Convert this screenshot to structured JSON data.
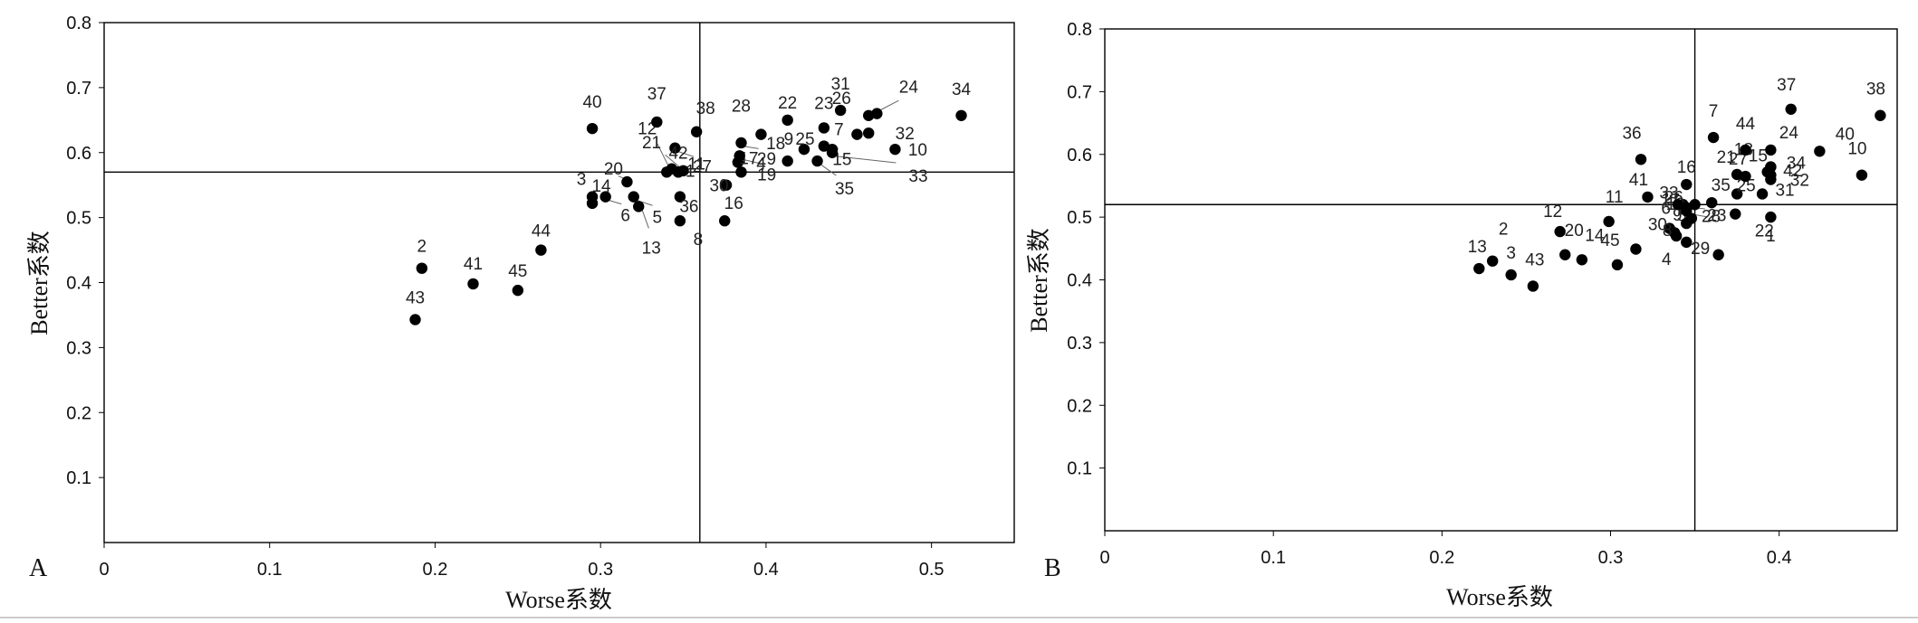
{
  "chart_data": [
    {
      "type": "scatter",
      "panel_label": "A",
      "xlabel": "Worse系数",
      "ylabel": "Better系数",
      "xlim": [
        0,
        0.55
      ],
      "ylim": [
        0,
        0.8
      ],
      "xticks": [
        "0",
        "0.1",
        "0.2",
        "0.3",
        "0.4",
        "0.5"
      ],
      "yticks": [
        "0.1",
        "0.2",
        "0.3",
        "0.4",
        "0.5",
        "0.6",
        "0.7",
        "0.8"
      ],
      "reference_lines": {
        "x": 0.36,
        "y": 0.57
      },
      "grid": false,
      "points": [
        {
          "label": "1",
          "x": 0.34,
          "y": 0.57
        },
        {
          "label": "2",
          "x": 0.192,
          "y": 0.422
        },
        {
          "label": "3",
          "x": 0.295,
          "y": 0.532
        },
        {
          "label": "4",
          "x": 0.385,
          "y": 0.57
        },
        {
          "label": "5",
          "x": 0.32,
          "y": 0.532
        },
        {
          "label": "6",
          "x": 0.303,
          "y": 0.532
        },
        {
          "label": "7",
          "x": 0.455,
          "y": 0.628
        },
        {
          "label": "8",
          "x": 0.348,
          "y": 0.495
        },
        {
          "label": "9",
          "x": 0.423,
          "y": 0.605
        },
        {
          "label": "10",
          "x": 0.478,
          "y": 0.605
        },
        {
          "label": "11",
          "x": 0.347,
          "y": 0.57
        },
        {
          "label": "12",
          "x": 0.343,
          "y": 0.575
        },
        {
          "label": "13",
          "x": 0.323,
          "y": 0.517
        },
        {
          "label": "14",
          "x": 0.295,
          "y": 0.522
        },
        {
          "label": "15",
          "x": 0.435,
          "y": 0.61
        },
        {
          "label": "16",
          "x": 0.375,
          "y": 0.495
        },
        {
          "label": "17",
          "x": 0.383,
          "y": 0.585
        },
        {
          "label": "18",
          "x": 0.413,
          "y": 0.587
        },
        {
          "label": "19",
          "x": 0.384,
          "y": 0.595
        },
        {
          "label": "20",
          "x": 0.316,
          "y": 0.555
        },
        {
          "label": "21",
          "x": 0.35,
          "y": 0.572
        },
        {
          "label": "22",
          "x": 0.413,
          "y": 0.65
        },
        {
          "label": "23",
          "x": 0.435,
          "y": 0.638
        },
        {
          "label": "24",
          "x": 0.467,
          "y": 0.66
        },
        {
          "label": "25",
          "x": 0.44,
          "y": 0.605
        },
        {
          "label": "26",
          "x": 0.462,
          "y": 0.657
        },
        {
          "label": "27",
          "x": 0.345,
          "y": 0.607
        },
        {
          "label": "28",
          "x": 0.397,
          "y": 0.628
        },
        {
          "label": "29",
          "x": 0.385,
          "y": 0.615
        },
        {
          "label": "30",
          "x": 0.376,
          "y": 0.55
        },
        {
          "label": "31",
          "x": 0.445,
          "y": 0.665
        },
        {
          "label": "32",
          "x": 0.462,
          "y": 0.63
        },
        {
          "label": "33",
          "x": 0.44,
          "y": 0.6
        },
        {
          "label": "34",
          "x": 0.518,
          "y": 0.657
        },
        {
          "label": "35",
          "x": 0.431,
          "y": 0.587
        },
        {
          "label": "36",
          "x": 0.348,
          "y": 0.532
        },
        {
          "label": "37",
          "x": 0.334,
          "y": 0.647
        },
        {
          "label": "38",
          "x": 0.358,
          "y": 0.632
        },
        {
          "label": "40",
          "x": 0.295,
          "y": 0.637
        },
        {
          "label": "41",
          "x": 0.223,
          "y": 0.398
        },
        {
          "label": "42",
          "x": 0.347,
          "y": 0.57
        },
        {
          "label": "43",
          "x": 0.188,
          "y": 0.343
        },
        {
          "label": "44",
          "x": 0.264,
          "y": 0.45
        },
        {
          "label": "45",
          "x": 0.25,
          "y": 0.388
        }
      ]
    },
    {
      "type": "scatter",
      "panel_label": "B",
      "xlabel": "Worse系数",
      "ylabel": "Better系数",
      "xlim": [
        0,
        0.47
      ],
      "ylim": [
        0,
        0.8
      ],
      "xticks": [
        "0",
        "0.1",
        "0.2",
        "0.3",
        "0.4"
      ],
      "yticks": [
        "0.1",
        "0.2",
        "0.3",
        "0.4",
        "0.5",
        "0.6",
        "0.7",
        "0.8"
      ],
      "reference_lines": {
        "x": 0.35,
        "y": 0.52
      },
      "grid": false,
      "points": [
        {
          "label": "1",
          "x": 0.395,
          "y": 0.5
        },
        {
          "label": "2",
          "x": 0.23,
          "y": 0.43
        },
        {
          "label": "3",
          "x": 0.241,
          "y": 0.408
        },
        {
          "label": "4",
          "x": 0.345,
          "y": 0.46
        },
        {
          "label": "5",
          "x": 0.338,
          "y": 0.475
        },
        {
          "label": "6",
          "x": 0.335,
          "y": 0.482
        },
        {
          "label": "7",
          "x": 0.361,
          "y": 0.627
        },
        {
          "label": "8",
          "x": 0.339,
          "y": 0.47
        },
        {
          "label": "9",
          "x": 0.345,
          "y": 0.49
        },
        {
          "label": "10",
          "x": 0.449,
          "y": 0.567
        },
        {
          "label": "11",
          "x": 0.299,
          "y": 0.493
        },
        {
          "label": "12",
          "x": 0.27,
          "y": 0.477
        },
        {
          "label": "13",
          "x": 0.222,
          "y": 0.418
        },
        {
          "label": "14",
          "x": 0.283,
          "y": 0.432
        },
        {
          "label": "15",
          "x": 0.395,
          "y": 0.567
        },
        {
          "label": "16",
          "x": 0.345,
          "y": 0.552
        },
        {
          "label": "17",
          "x": 0.343,
          "y": 0.52
        },
        {
          "label": "18",
          "x": 0.395,
          "y": 0.58
        },
        {
          "label": "19",
          "x": 0.345,
          "y": 0.51
        },
        {
          "label": "20",
          "x": 0.273,
          "y": 0.44
        },
        {
          "label": "21",
          "x": 0.375,
          "y": 0.568
        },
        {
          "label": "22",
          "x": 0.374,
          "y": 0.505
        },
        {
          "label": "23",
          "x": 0.348,
          "y": 0.498
        },
        {
          "label": "24",
          "x": 0.395,
          "y": 0.607
        },
        {
          "label": "25",
          "x": 0.375,
          "y": 0.537
        },
        {
          "label": "26",
          "x": 0.345,
          "y": 0.515
        },
        {
          "label": "27",
          "x": 0.38,
          "y": 0.565
        },
        {
          "label": "28",
          "x": 0.35,
          "y": 0.52
        },
        {
          "label": "29",
          "x": 0.364,
          "y": 0.44
        },
        {
          "label": "30",
          "x": 0.315,
          "y": 0.449
        },
        {
          "label": "31",
          "x": 0.39,
          "y": 0.537
        },
        {
          "label": "32",
          "x": 0.395,
          "y": 0.56
        },
        {
          "label": "33",
          "x": 0.34,
          "y": 0.52
        },
        {
          "label": "34",
          "x": 0.395,
          "y": 0.58
        },
        {
          "label": "35",
          "x": 0.36,
          "y": 0.523
        },
        {
          "label": "36",
          "x": 0.318,
          "y": 0.592
        },
        {
          "label": "37",
          "x": 0.407,
          "y": 0.672
        },
        {
          "label": "38",
          "x": 0.46,
          "y": 0.662
        },
        {
          "label": "40",
          "x": 0.424,
          "y": 0.605
        },
        {
          "label": "41",
          "x": 0.322,
          "y": 0.532
        },
        {
          "label": "42",
          "x": 0.393,
          "y": 0.572
        },
        {
          "label": "43",
          "x": 0.254,
          "y": 0.39
        },
        {
          "label": "44",
          "x": 0.38,
          "y": 0.607
        },
        {
          "label": "45",
          "x": 0.304,
          "y": 0.424
        }
      ]
    }
  ]
}
